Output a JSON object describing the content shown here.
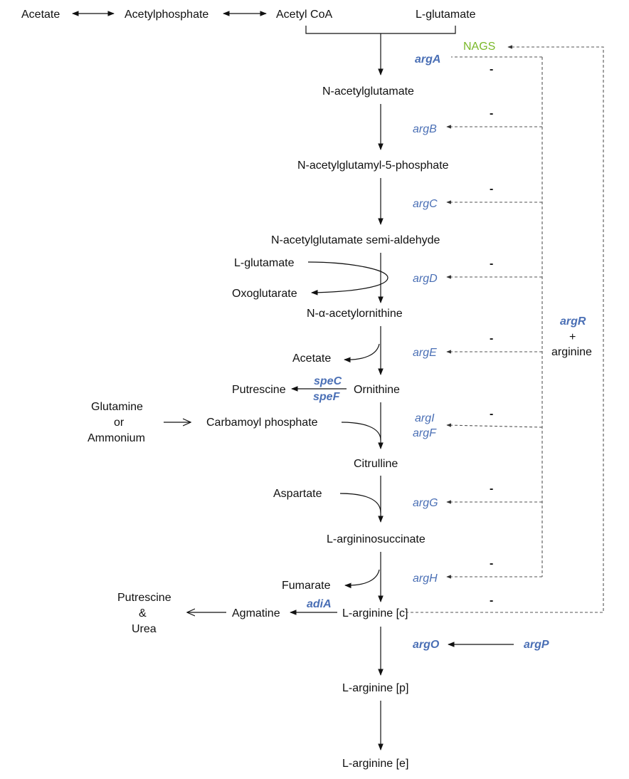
{
  "top_row": {
    "acetate": "Acetate",
    "acetylphosphate": "Acetylphosphate",
    "acetyl_coa": "Acetyl CoA",
    "l_glutamate": "L-glutamate"
  },
  "metabolites": {
    "n_acetylglutamate": "N-acetylglutamate",
    "n_acetylglutamyl_5_phosphate": "N-acetylglutamyl-5-phosphate",
    "n_acetylglutamate_semi_aldehyde": "N-acetylglutamate semi-aldehyde",
    "n_alpha_acetylornithine": "N-α-acetylornithine",
    "ornithine": "Ornithine",
    "carbamoyl_phosphate": "Carbamoyl phosphate",
    "citrulline": "Citrulline",
    "l_argininosuccinate": "L-argininosuccinate",
    "l_arginine_c": "L-arginine [c]",
    "l_arginine_p": "L-arginine [p]",
    "l_arginine_e": "L-arginine [e]"
  },
  "side_metabolites": {
    "l_glutamate_in": "L-glutamate",
    "oxoglutarate": "Oxoglutarate",
    "acetate_out": "Acetate",
    "putrescine": "Putrescine",
    "glutamine": "Glutamine",
    "or": "or",
    "ammonium": "Ammonium",
    "aspartate": "Aspartate",
    "fumarate": "Fumarate",
    "agmatine": "Agmatine",
    "putrescine2": "Putrescine",
    "ampersand": "&",
    "urea": "Urea"
  },
  "genes": {
    "nags": "NAGS",
    "argA": "argA",
    "argB": "argB",
    "argC": "argC",
    "argD": "argD",
    "argE": "argE",
    "speC": "speC",
    "speF": "speF",
    "argI": "argI",
    "argF": "argF",
    "argG": "argG",
    "argH": "argH",
    "adiA": "adiA",
    "argO": "argO",
    "argP": "argP"
  },
  "regulator": {
    "argR": "argR",
    "plus": "+",
    "arginine": "arginine"
  },
  "inhibition_marks": [
    "-",
    "-",
    "-",
    "-",
    "-",
    "-",
    "-",
    "-",
    "-"
  ],
  "colors": {
    "gene_blue": "#4a6fb5",
    "enzyme_green": "#7ab829",
    "text": "#111111"
  }
}
